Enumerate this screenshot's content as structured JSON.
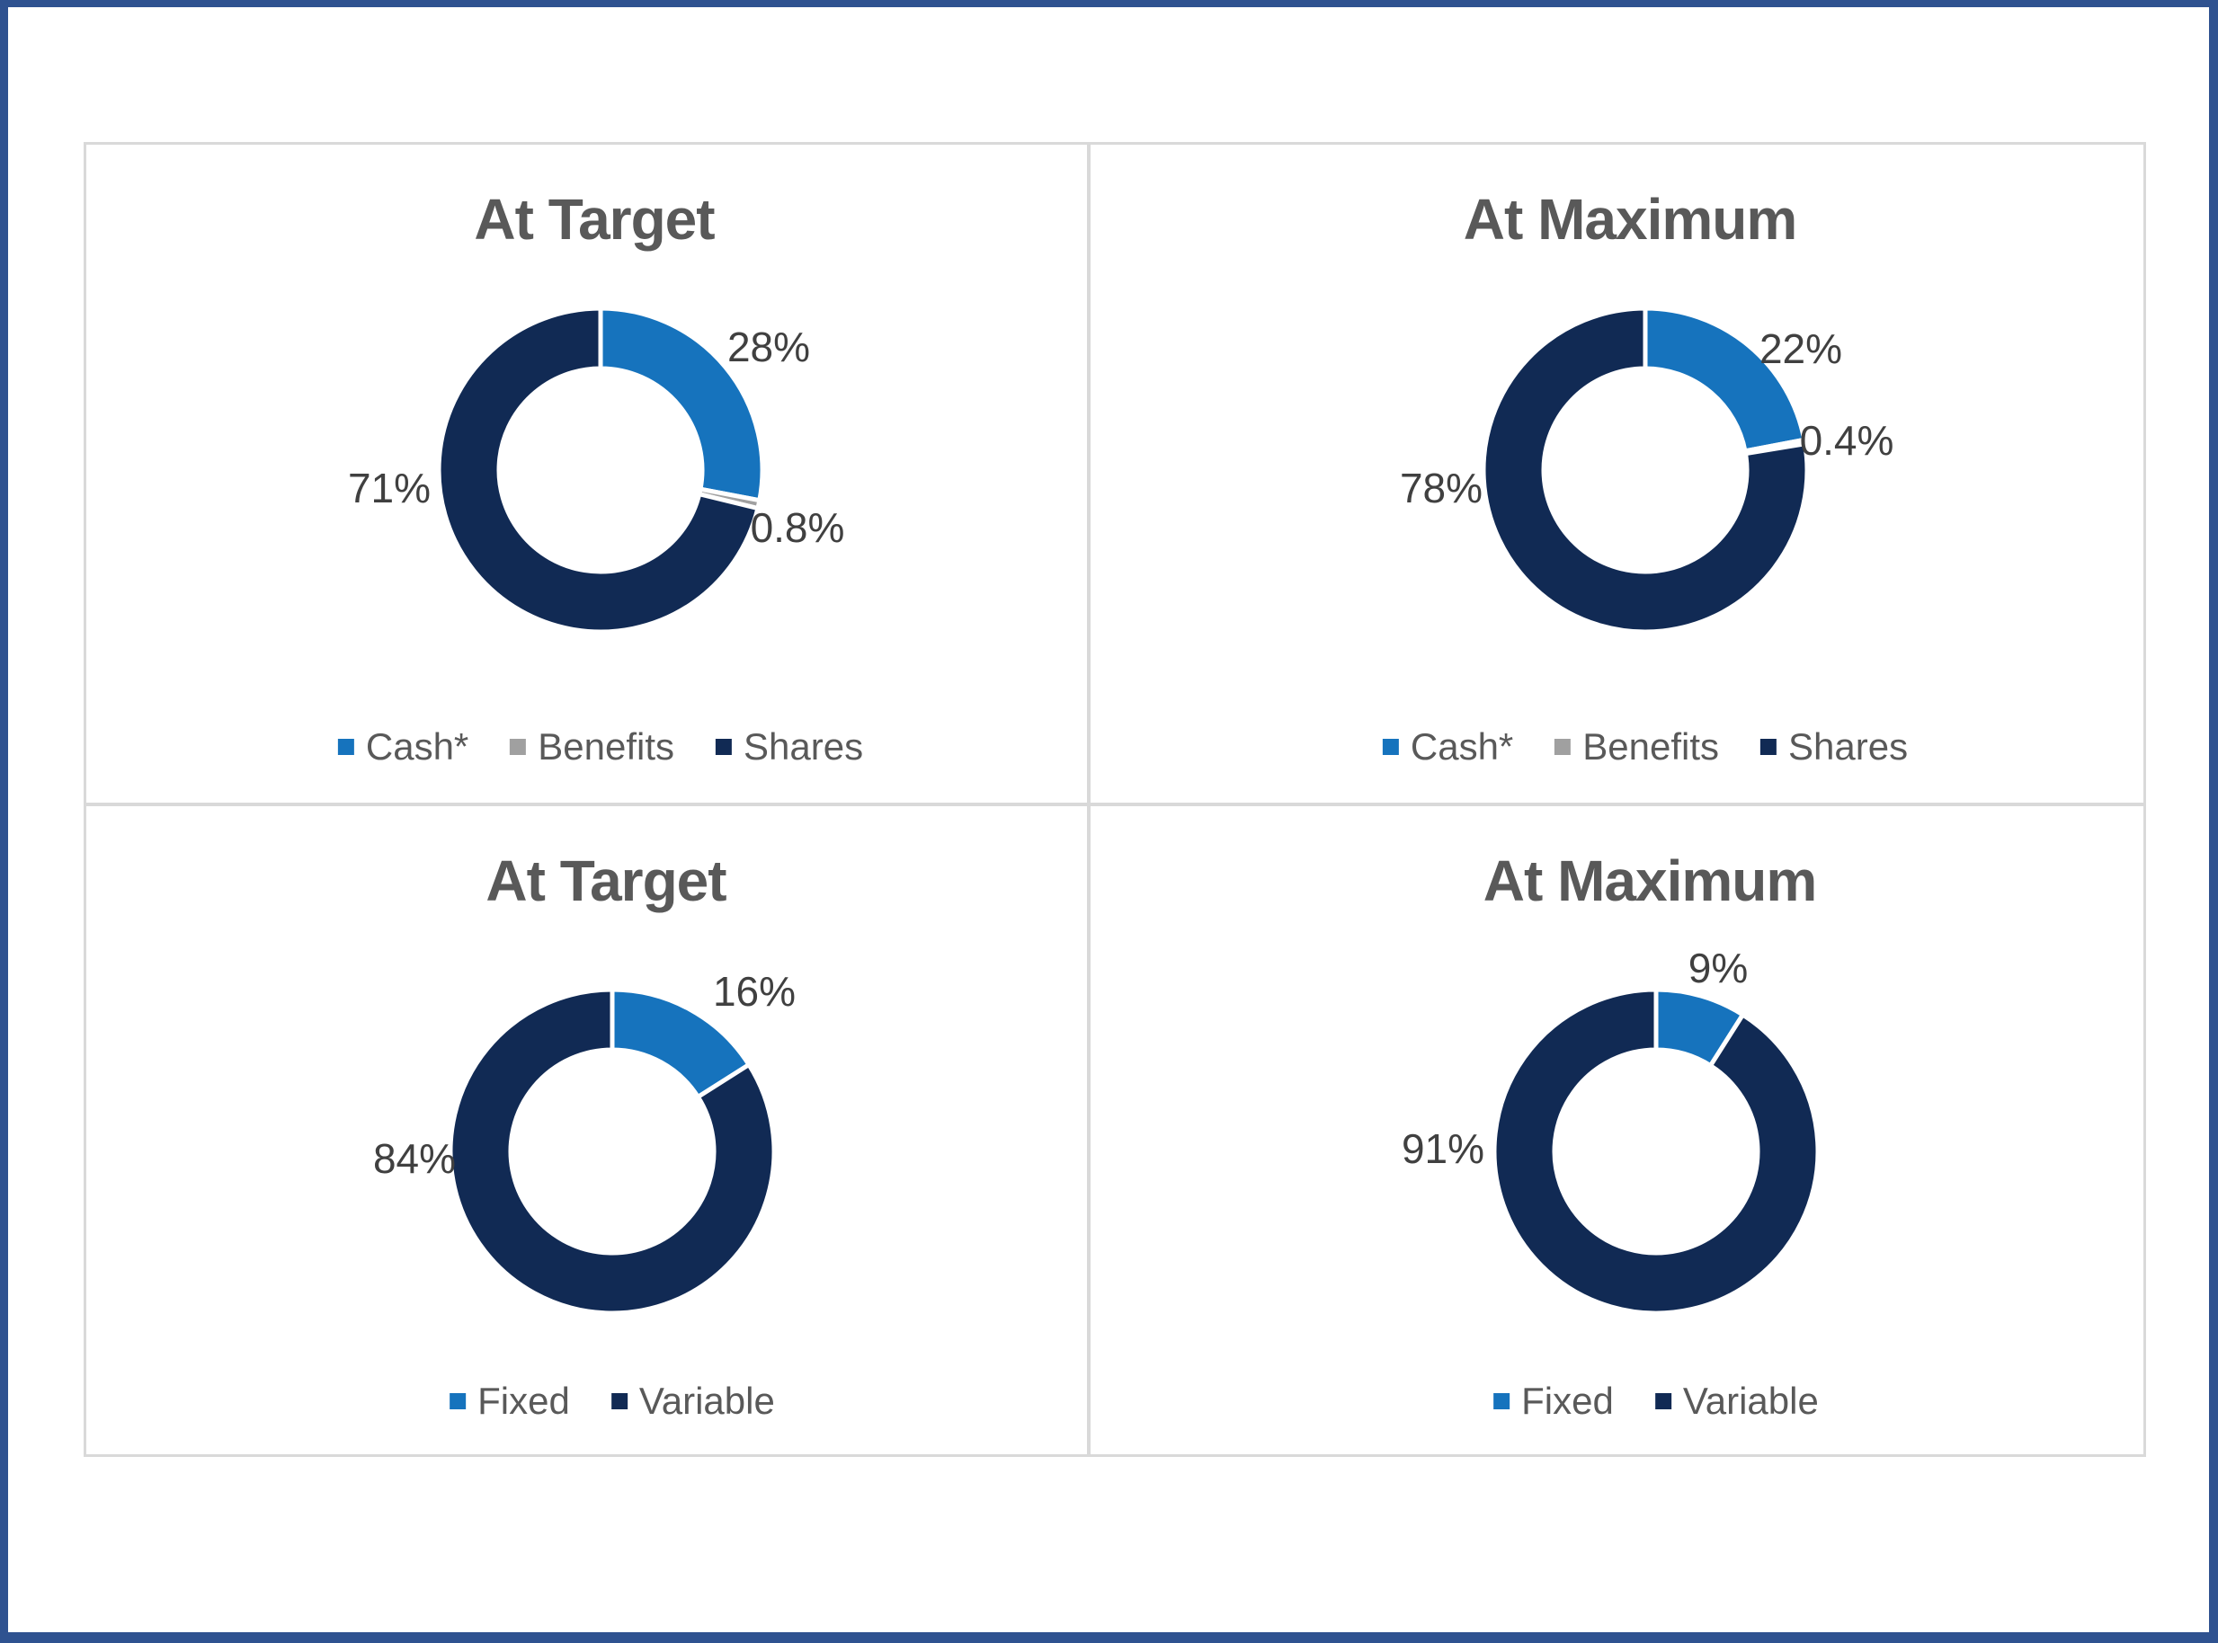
{
  "page": {
    "frame_color": "#2F5290",
    "panel_border_color": "#D9D9D9",
    "background": "#FFFFFF",
    "title_text_color": "#595959",
    "label_text_color": "#404040"
  },
  "chart_data": [
    {
      "type": "pie",
      "subtype": "donut",
      "quadrant": "top-left",
      "title": "At Target",
      "start_angle_deg": 0,
      "direction": "clockwise",
      "hole_ratio": 0.63,
      "legend_position": "bottom",
      "series": [
        {
          "name": "Cash*",
          "value": 28,
          "label": "28%",
          "color": "#1673BD"
        },
        {
          "name": "Benefits",
          "value": 0.8,
          "label": "0.8%",
          "color": "#A0A0A0"
        },
        {
          "name": "Shares",
          "value": 71.2,
          "label": "71%",
          "color": "#112A54"
        }
      ]
    },
    {
      "type": "pie",
      "subtype": "donut",
      "quadrant": "top-right",
      "title": "At Maximum",
      "start_angle_deg": 0,
      "direction": "clockwise",
      "hole_ratio": 0.63,
      "legend_position": "bottom",
      "series": [
        {
          "name": "Cash*",
          "value": 22,
          "label": "22%",
          "color": "#1673BD"
        },
        {
          "name": "Benefits",
          "value": 0.4,
          "label": "0.4%",
          "color": "#A0A0A0"
        },
        {
          "name": "Shares",
          "value": 77.6,
          "label": "78%",
          "color": "#112A54"
        }
      ]
    },
    {
      "type": "pie",
      "subtype": "donut",
      "quadrant": "bottom-left",
      "title": "At Target",
      "start_angle_deg": 0,
      "direction": "clockwise",
      "hole_ratio": 0.63,
      "legend_position": "bottom",
      "series": [
        {
          "name": "Fixed",
          "value": 16,
          "label": "16%",
          "color": "#1673BD"
        },
        {
          "name": "Variable",
          "value": 84,
          "label": "84%",
          "color": "#112A54"
        }
      ]
    },
    {
      "type": "pie",
      "subtype": "donut",
      "quadrant": "bottom-right",
      "title": "At Maximum",
      "start_angle_deg": 0,
      "direction": "clockwise",
      "hole_ratio": 0.63,
      "legend_position": "bottom",
      "series": [
        {
          "name": "Fixed",
          "value": 9,
          "label": "9%",
          "color": "#1673BD"
        },
        {
          "name": "Variable",
          "value": 91,
          "label": "91%",
          "color": "#112A54"
        }
      ]
    }
  ]
}
